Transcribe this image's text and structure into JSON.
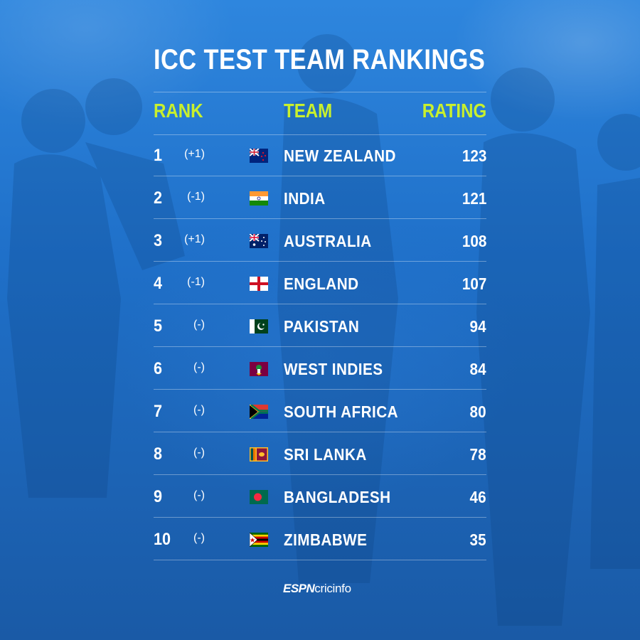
{
  "title": "ICC TEST TEAM RANKINGS",
  "headers": {
    "rank": "RANK",
    "team": "TEAM",
    "rating": "RATING"
  },
  "rows": [
    {
      "rank": "1",
      "change": "(+1)",
      "team": "NEW ZEALAND",
      "rating": "123",
      "flag": "nz-flag-icon"
    },
    {
      "rank": "2",
      "change": "(-1)",
      "team": "INDIA",
      "rating": "121",
      "flag": "india-flag-icon"
    },
    {
      "rank": "3",
      "change": "(+1)",
      "team": "AUSTRALIA",
      "rating": "108",
      "flag": "australia-flag-icon"
    },
    {
      "rank": "4",
      "change": "(-1)",
      "team": "ENGLAND",
      "rating": "107",
      "flag": "england-flag-icon"
    },
    {
      "rank": "5",
      "change": "(-)",
      "team": "PAKISTAN",
      "rating": "94",
      "flag": "pakistan-flag-icon"
    },
    {
      "rank": "6",
      "change": "(-)",
      "team": "WEST INDIES",
      "rating": "84",
      "flag": "west-indies-flag-icon"
    },
    {
      "rank": "7",
      "change": "(-)",
      "team": "SOUTH AFRICA",
      "rating": "80",
      "flag": "south-africa-flag-icon"
    },
    {
      "rank": "8",
      "change": "(-)",
      "team": "SRI LANKA",
      "rating": "78",
      "flag": "sri-lanka-flag-icon"
    },
    {
      "rank": "9",
      "change": "(-)",
      "team": "BANGLADESH",
      "rating": "46",
      "flag": "bangladesh-flag-icon"
    },
    {
      "rank": "10",
      "change": "(-)",
      "team": "ZIMBABWE",
      "rating": "35",
      "flag": "zimbabwe-flag-icon"
    }
  ],
  "brand": {
    "espn": "ESPN",
    "cricinfo": "cricinfo"
  },
  "colors": {
    "accent": "#c8f02d",
    "background": "#1f70c9",
    "text": "#ffffff"
  }
}
